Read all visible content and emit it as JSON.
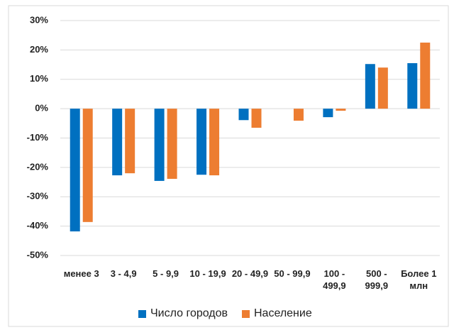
{
  "chart_data": {
    "type": "bar",
    "categories": [
      "менее 3",
      "3 - 4,9",
      "5 - 9,9",
      "10 - 19,9",
      "20 - 49,9",
      "50 - 99,9",
      "100 - 499,9",
      "500 - 999,9",
      "Более 1 млн"
    ],
    "series": [
      {
        "name": "Число городов",
        "color": "#0070c0",
        "values": [
          -41.8,
          -22.7,
          -24.6,
          -22.5,
          -3.9,
          0,
          -2.9,
          15.2,
          15.5
        ]
      },
      {
        "name": "Население",
        "color": "#ed7d31",
        "values": [
          -38.6,
          -22.0,
          -23.9,
          -22.7,
          -6.5,
          -4.1,
          -0.7,
          14.0,
          22.5
        ]
      }
    ],
    "ylim": [
      -50,
      30
    ],
    "yticks": [
      {
        "value": -50,
        "label": "-50%"
      },
      {
        "value": -40,
        "label": "-40%"
      },
      {
        "value": -30,
        "label": "-30%"
      },
      {
        "value": -20,
        "label": "-20%"
      },
      {
        "value": -10,
        "label": "-10%"
      },
      {
        "value": 0,
        "label": "0%"
      },
      {
        "value": 10,
        "label": "10%"
      },
      {
        "value": 20,
        "label": "20%"
      },
      {
        "value": 30,
        "label": "30%"
      }
    ],
    "grid": true,
    "legend": "bottom"
  }
}
